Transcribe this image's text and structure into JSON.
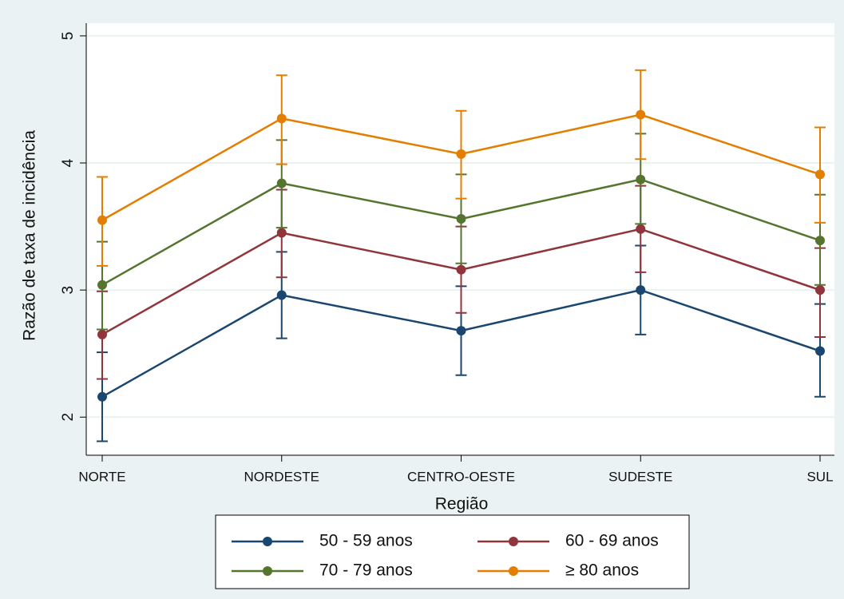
{
  "chart_data": {
    "type": "line",
    "x_label": "Região",
    "y_label": "Razão de taxa de incidência",
    "categories": [
      "NORTE",
      "NORDESTE",
      "CENTRO-OESTE",
      "SUDESTE",
      "SUL"
    ],
    "series": [
      {
        "name": "50 - 59 anos",
        "color": "#1a476f",
        "values": [
          2.16,
          2.96,
          2.68,
          3.0,
          2.52
        ],
        "lower": [
          1.81,
          2.62,
          2.33,
          2.65,
          2.16
        ],
        "upper": [
          2.51,
          3.3,
          3.03,
          3.35,
          2.89
        ]
      },
      {
        "name": "60 - 69 anos",
        "color": "#90353b",
        "values": [
          2.65,
          3.45,
          3.16,
          3.48,
          3.0
        ],
        "lower": [
          2.3,
          3.1,
          2.82,
          3.14,
          2.63
        ],
        "upper": [
          2.99,
          3.79,
          3.5,
          3.82,
          3.33
        ]
      },
      {
        "name": "70 - 79 anos",
        "color": "#55752f",
        "values": [
          3.04,
          3.84,
          3.56,
          3.87,
          3.39
        ],
        "lower": [
          2.69,
          3.49,
          3.21,
          3.52,
          3.04
        ],
        "upper": [
          3.38,
          4.18,
          3.91,
          4.23,
          3.75
        ]
      },
      {
        "name": "≥ 80 anos",
        "color": "#e37e00",
        "values": [
          3.55,
          4.35,
          4.07,
          4.38,
          3.91
        ],
        "lower": [
          3.19,
          3.99,
          3.72,
          4.03,
          3.53
        ],
        "upper": [
          3.89,
          4.69,
          4.41,
          4.73,
          4.28
        ]
      }
    ],
    "ylim": [
      1.7,
      5.1
    ],
    "yticks": [
      2,
      3,
      4,
      5
    ],
    "grid": true,
    "legend": "bottom"
  }
}
